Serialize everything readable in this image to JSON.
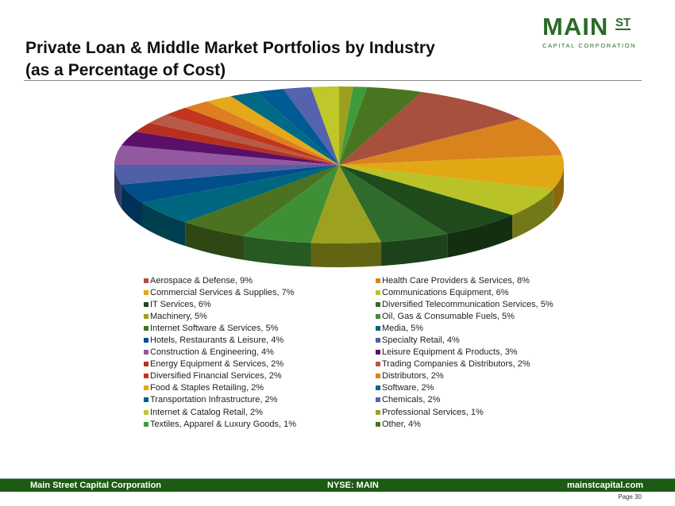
{
  "title_line1": "Private Loan & Middle Market Portfolios by Industry",
  "title_line2": "(as a Percentage of Cost)",
  "logo": {
    "main": "MAIN",
    "st": "ST",
    "sub": "CAPITAL CORPORATION"
  },
  "footer": {
    "company": "Main Street Capital Corporation",
    "ticker": "NYSE: MAIN",
    "website": "mainstcapital.com",
    "page": "Page  30"
  },
  "colors": {
    "brand": "#1d5a14"
  },
  "chart_data": {
    "type": "pie",
    "style": "3d",
    "legend_placement": "bottom",
    "slices": [
      {
        "label": "Aerospace & Defense, 9%",
        "name": "Aerospace & Defense",
        "value": 9,
        "color": "#a6503d"
      },
      {
        "label": "Health Care Providers & Services, 8%",
        "name": "Health Care Providers & Services",
        "value": 8,
        "color": "#d9831f"
      },
      {
        "label": "Commercial Services & Supplies, 7%",
        "name": "Commercial Services & Supplies",
        "value": 7,
        "color": "#e2a814"
      },
      {
        "label": "Communications Equipment, 6%",
        "name": "Communications Equipment",
        "value": 6,
        "color": "#b9c226"
      },
      {
        "label": "IT Services, 6%",
        "name": "IT Services",
        "value": 6,
        "color": "#1f4a1c"
      },
      {
        "label": "Diversified Telecommunication Services, 5%",
        "name": "Diversified Telecommunication Services",
        "value": 5,
        "color": "#2f6b2b"
      },
      {
        "label": "Machinery, 5%",
        "name": "Machinery",
        "value": 5,
        "color": "#9ca21f"
      },
      {
        "label": "Oil, Gas & Consumable Fuels, 5%",
        "name": "Oil, Gas & Consumable Fuels",
        "value": 5,
        "color": "#3f8f37"
      },
      {
        "label": "Internet Software & Services, 5%",
        "name": "Internet Software & Services",
        "value": 5,
        "color": "#4a7220"
      },
      {
        "label": "Media, 5%",
        "name": "Media",
        "value": 5,
        "color": "#00657f"
      },
      {
        "label": "Hotels, Restaurants & Leisure, 4%",
        "name": "Hotels, Restaurants & Leisure",
        "value": 4,
        "color": "#004f8a"
      },
      {
        "label": "Specialty Retail, 4%",
        "name": "Specialty Retail",
        "value": 4,
        "color": "#4f5fa8"
      },
      {
        "label": "Construction & Engineering, 4%",
        "name": "Construction & Engineering",
        "value": 4,
        "color": "#9259a0"
      },
      {
        "label": "Leisure Equipment & Products, 3%",
        "name": "Leisure Equipment & Products",
        "value": 3,
        "color": "#5a0f6a"
      },
      {
        "label": "Energy Equipment & Services, 2%",
        "name": "Energy Equipment & Services",
        "value": 2,
        "color": "#b7301d"
      },
      {
        "label": "Trading Companies & Distributors, 2%",
        "name": "Trading Companies & Distributors",
        "value": 2,
        "color": "#b85a48"
      },
      {
        "label": "Diversified Financial Services, 2%",
        "name": "Diversified Financial Services",
        "value": 2,
        "color": "#c2351e"
      },
      {
        "label": "Distributors, 2%",
        "name": "Distributors",
        "value": 2,
        "color": "#dd7f20"
      },
      {
        "label": "Food & Staples Retailing, 2%",
        "name": "Food & Staples Retailing",
        "value": 2,
        "color": "#e5a81a"
      },
      {
        "label": "Software, 2%",
        "name": "Software",
        "value": 2,
        "color": "#006a86"
      },
      {
        "label": "Transportation Infrastructure, 2%",
        "name": "Transportation Infrastructure",
        "value": 2,
        "color": "#005a93"
      },
      {
        "label": "Chemicals, 2%",
        "name": "Chemicals",
        "value": 2,
        "color": "#5562ae"
      },
      {
        "label": "Internet & Catalog Retail, 2%",
        "name": "Internet & Catalog Retail",
        "value": 2,
        "color": "#c0c72a"
      },
      {
        "label": "Professional Services, 1%",
        "name": "Professional Services",
        "value": 1,
        "color": "#9da01f"
      },
      {
        "label": "Textiles, Apparel & Luxury Goods, 1%",
        "name": "Textiles, Apparel & Luxury Goods",
        "value": 1,
        "color": "#3f9b3c"
      },
      {
        "label": "Other, 4%",
        "name": "Other",
        "value": 4,
        "color": "#4a7520"
      }
    ]
  }
}
